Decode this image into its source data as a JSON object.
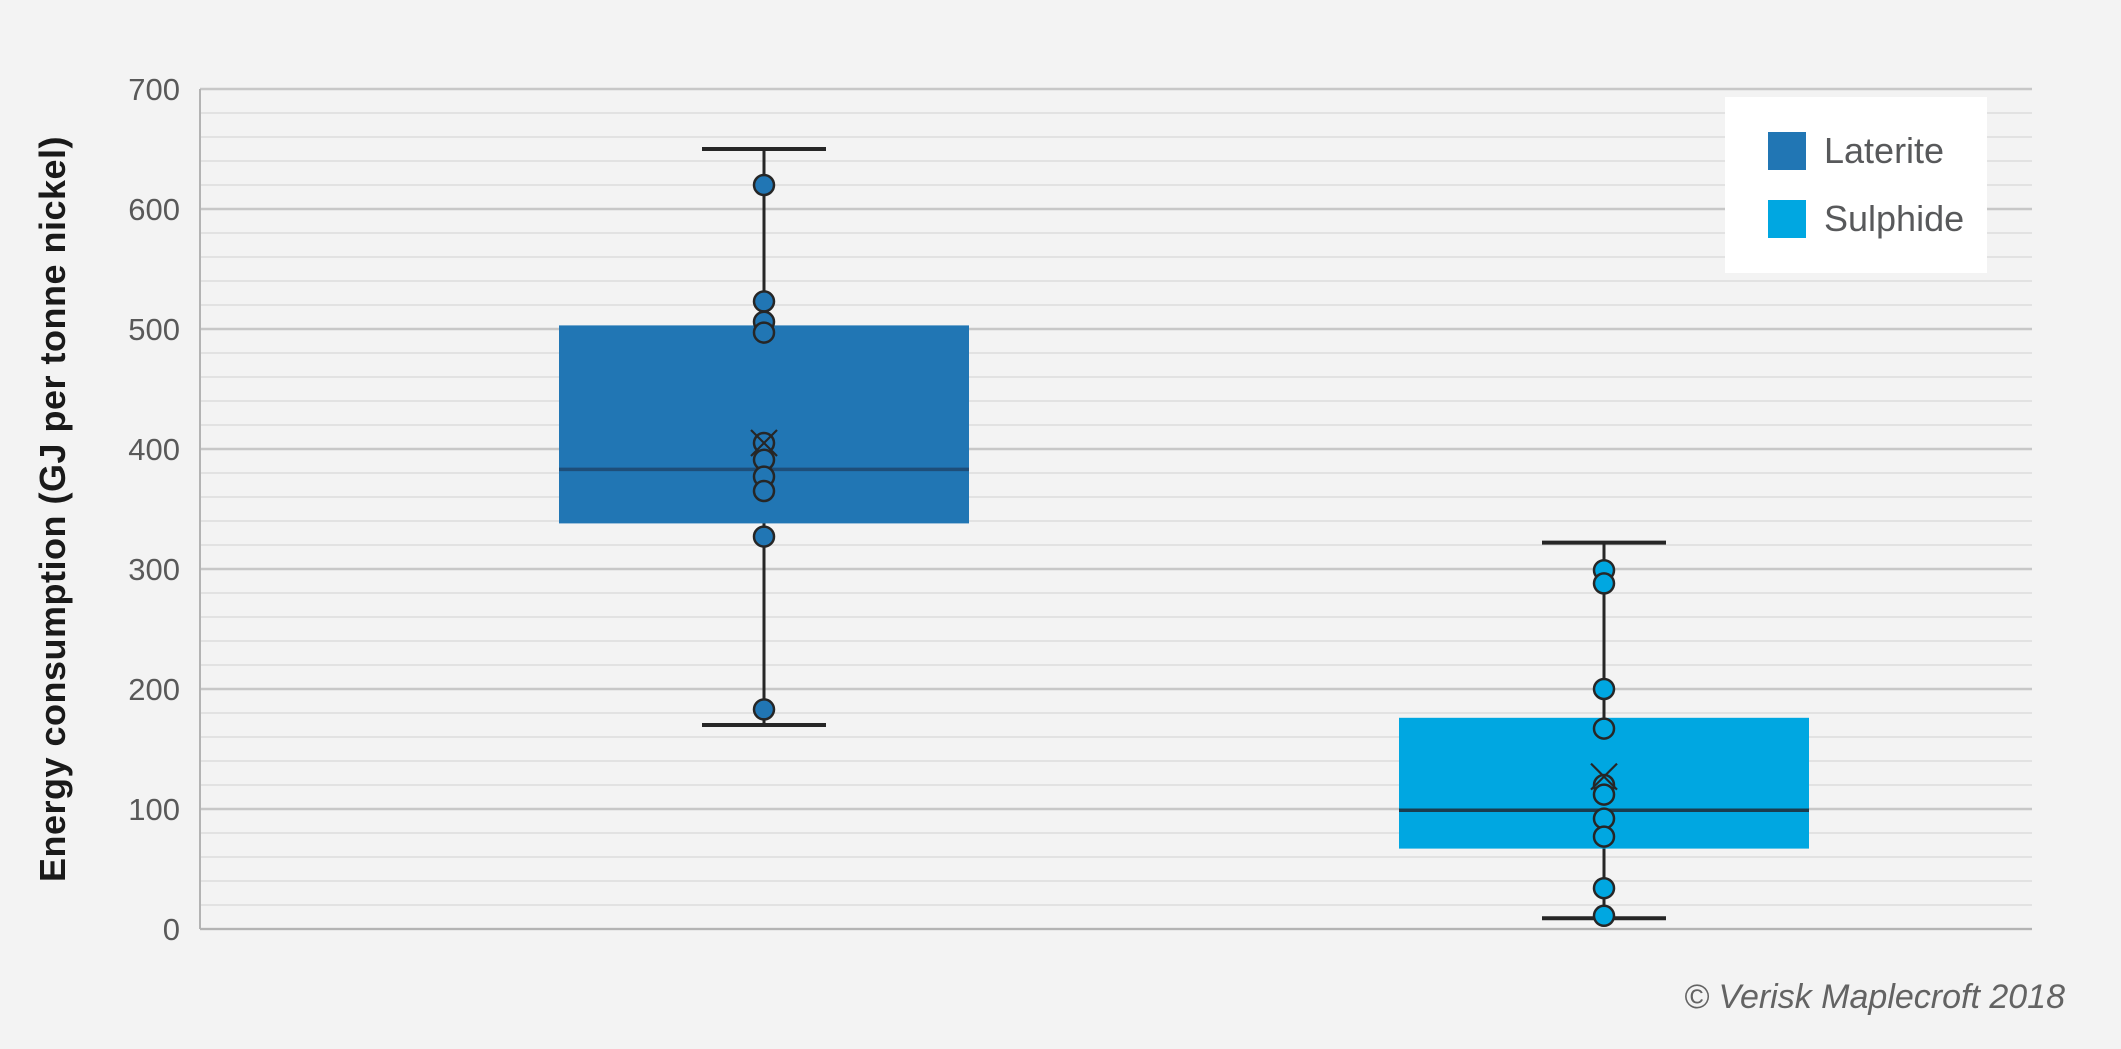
{
  "chart_data": {
    "type": "boxplot",
    "title": "",
    "ylabel": "Energy consumption (GJ per tonne nickel)",
    "ylim": [
      0,
      700
    ],
    "yticks": [
      0,
      100,
      200,
      300,
      400,
      500,
      600,
      700
    ],
    "minor_grid_step": 20,
    "grid": "on",
    "legend_position": "top-right",
    "background_color": "#f3f3f3",
    "legend_background": "#ffffff",
    "tick_label_color": "#595959",
    "whisker_color": "#262626",
    "series": [
      {
        "name": "Laterite",
        "color": "#2176B4",
        "median_color": "#1E4E79",
        "min": 170,
        "q1": 338,
        "median": 383,
        "q3": 503,
        "max": 650,
        "mean": 405,
        "points": [
          620,
          523,
          506,
          497,
          405,
          391,
          377,
          365,
          327,
          183
        ]
      },
      {
        "name": "Sulphide",
        "color": "#00A7E1",
        "median_color": "#1A3C4E",
        "min": 9,
        "q1": 67,
        "median": 99,
        "q3": 176,
        "max": 322,
        "mean": 127,
        "points": [
          299,
          288,
          200,
          167,
          120,
          112,
          92,
          77,
          34,
          11
        ]
      }
    ],
    "footer": "© Verisk Maplecroft 2018"
  }
}
